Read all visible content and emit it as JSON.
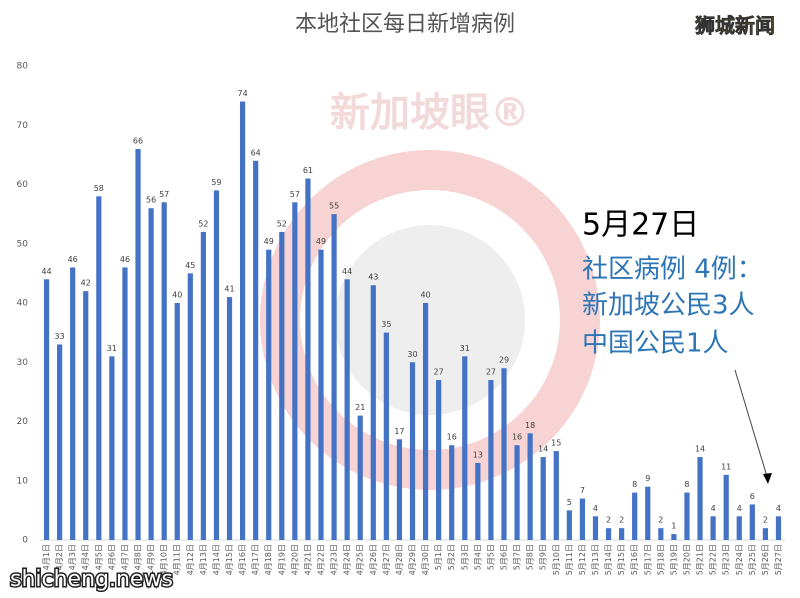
{
  "chart_data": {
    "type": "bar",
    "title": "本地社区每日新增病例",
    "brand": "狮城新闻",
    "watermark": "新加坡眼®",
    "site": "shicheng.news",
    "annotation": {
      "date": "5月27日",
      "lines": [
        "社区病例 4例：",
        "新加坡公民3人",
        "中国公民1人"
      ]
    },
    "categories": [
      "4月1日",
      "4月2日",
      "4月3日",
      "4月4日",
      "4月5日",
      "4月6日",
      "4月7日",
      "4月8日",
      "4月9日",
      "4月10日",
      "4月11日",
      "4月12日",
      "4月13日",
      "4月14日",
      "4月15日",
      "4月16日",
      "4月17日",
      "4月18日",
      "4月19日",
      "4月20日",
      "4月21日",
      "4月22日",
      "4月23日",
      "4月24日",
      "4月25日",
      "4月26日",
      "4月27日",
      "4月28日",
      "4月29日",
      "4月30日",
      "5月1日",
      "5月2日",
      "5月3日",
      "5月4日",
      "5月5日",
      "5月6日",
      "5月7日",
      "5月8日",
      "5月9日",
      "5月10日",
      "5月11日",
      "5月12日",
      "5月13日",
      "5月14日",
      "5月15日",
      "5月16日",
      "5月17日",
      "5月18日",
      "5月19日",
      "5月20日",
      "5月21日",
      "5月22日",
      "5月23日",
      "5月24日",
      "5月25日",
      "5月26日",
      "5月27日"
    ],
    "values": [
      44,
      33,
      46,
      42,
      58,
      31,
      46,
      66,
      56,
      57,
      40,
      45,
      52,
      59,
      41,
      74,
      64,
      49,
      52,
      57,
      61,
      49,
      55,
      44,
      21,
      43,
      35,
      17,
      30,
      40,
      27,
      16,
      31,
      13,
      27,
      29,
      16,
      18,
      14,
      15,
      5,
      7,
      4,
      2,
      2,
      8,
      9,
      2,
      1,
      8,
      14,
      4,
      11,
      4,
      6,
      2,
      4
    ],
    "color": "#4472c4",
    "ylim": [
      0,
      80
    ],
    "yticks": [
      0,
      10,
      20,
      30,
      40,
      50,
      60,
      70,
      80
    ],
    "grid": false
  }
}
